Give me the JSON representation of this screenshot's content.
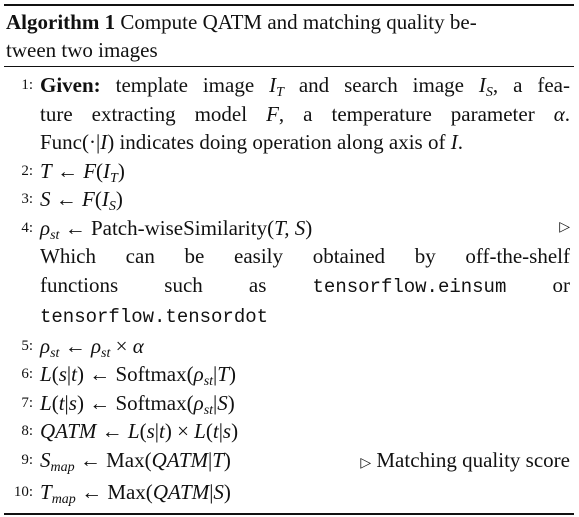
{
  "caption": {
    "label": "Algorithm 1",
    "title_line1": "Compute QATM and matching quality be-",
    "title_line2": "tween two images"
  },
  "lines": [
    {
      "num": "1:",
      "given_label": "Given:",
      "text_a": "template image",
      "text_b": "and search image",
      "text_c": ", a fea-",
      "text_d": "ture extracting model",
      "text_e": ", a temperature parameter",
      "text_f": ".",
      "text_g": "Func(·|",
      "text_h": ") indicates doing operation along axis of",
      "text_i": "."
    },
    {
      "num": "2:"
    },
    {
      "num": "3:"
    },
    {
      "num": "4:",
      "func": "Patch-wiseSimilarity(",
      "comment_l1": "Which can be easily obtained by off-the-shelf",
      "comment_l2a": "functions such as",
      "mono1": "tensorflow.einsum",
      "comment_l2b": "or",
      "mono2": "tensorflow.tensordot"
    },
    {
      "num": "5:"
    },
    {
      "num": "6:",
      "func": "Softmax("
    },
    {
      "num": "7:",
      "func": "Softmax("
    },
    {
      "num": "8:"
    },
    {
      "num": "9:",
      "func": "Max(",
      "comment": "Matching quality score"
    },
    {
      "num": "10:",
      "func": "Max("
    }
  ]
}
